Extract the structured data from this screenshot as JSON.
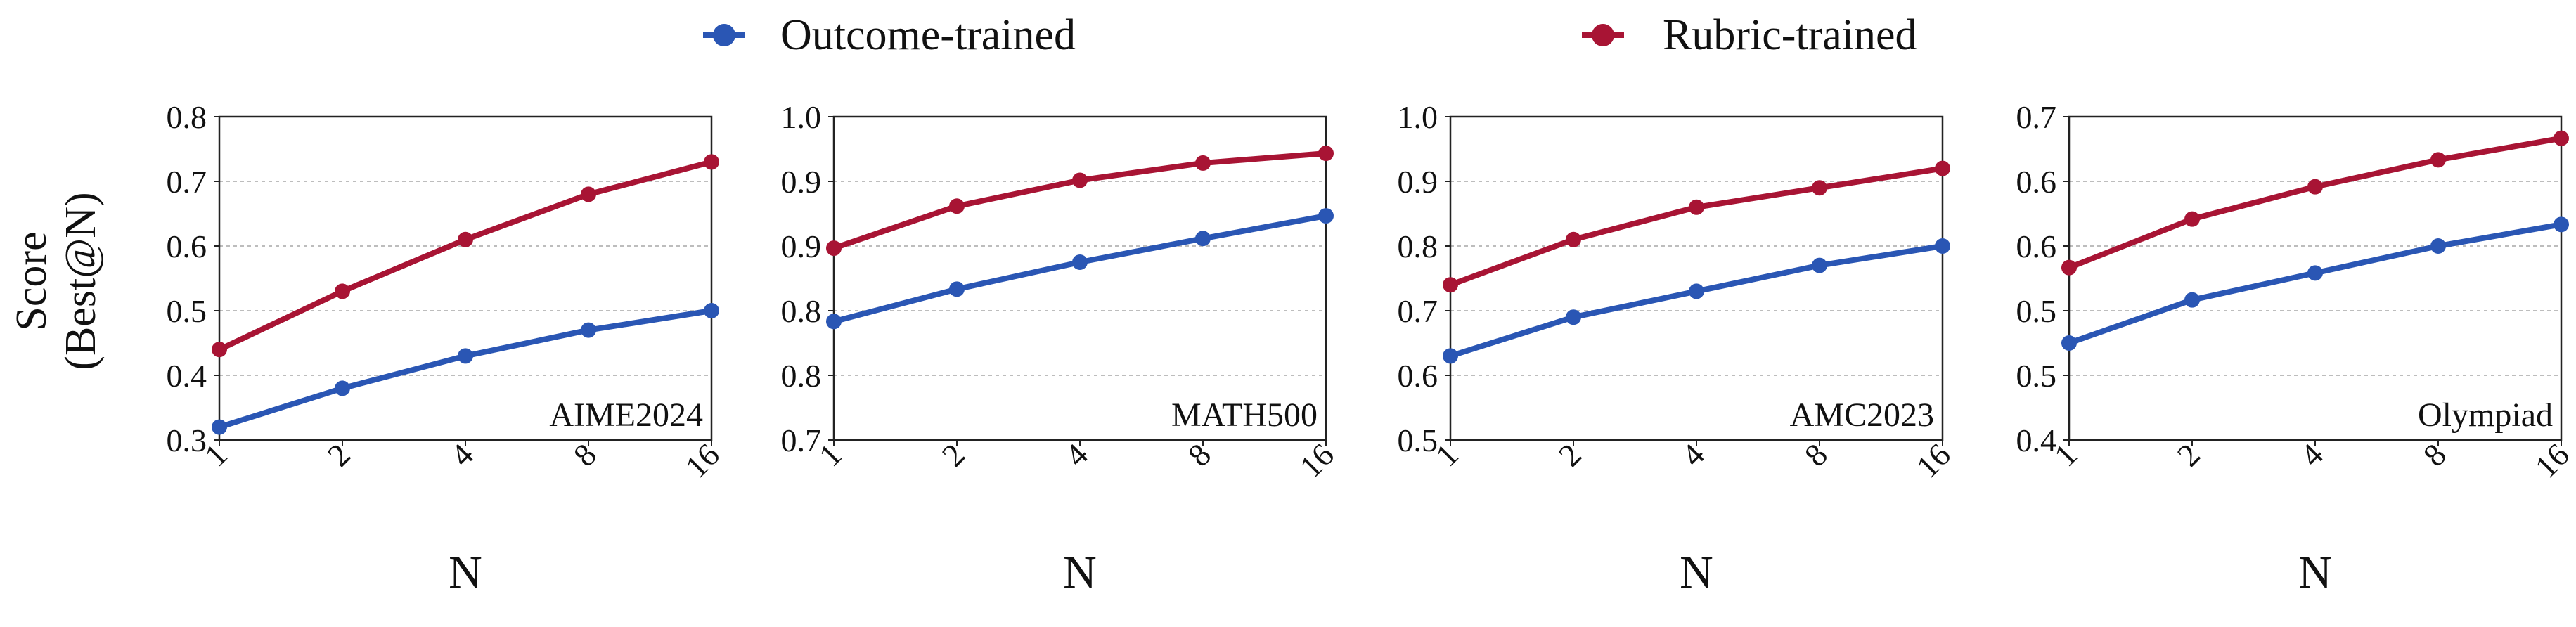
{
  "colors": {
    "outcome": "#2a56b4",
    "rubric": "#a81434",
    "grid": "#bdbdbd",
    "frame": "#222222"
  },
  "legend": {
    "outcome_label": "Outcome-trained",
    "rubric_label": "Rubric-trained"
  },
  "ylabel_line1": "Score",
  "ylabel_line2": "(Best@N)",
  "chart_data": [
    {
      "type": "line",
      "title": "AIME2024",
      "xlabel": "N",
      "ylabel": "Score (Best@N)",
      "categories": [
        "1",
        "2",
        "4",
        "8",
        "16"
      ],
      "yticks": [
        "0.3",
        "0.4",
        "0.5",
        "0.6",
        "0.7",
        "0.8"
      ],
      "ylim": [
        0.3,
        0.8
      ],
      "grid": true,
      "series": [
        {
          "name": "Outcome-trained",
          "values": [
            0.32,
            0.38,
            0.43,
            0.47,
            0.5
          ]
        },
        {
          "name": "Rubric-trained",
          "values": [
            0.44,
            0.53,
            0.61,
            0.68,
            0.73
          ]
        }
      ]
    },
    {
      "type": "line",
      "title": "MATH500",
      "xlabel": "N",
      "ylabel": "",
      "categories": [
        "1",
        "2",
        "4",
        "8",
        "16"
      ],
      "yticks": [
        "0.7",
        "0.8",
        "0.8",
        "0.9",
        "0.9",
        "1.0"
      ],
      "ylim": [
        0.7,
        1.0
      ],
      "grid": true,
      "series": [
        {
          "name": "Outcome-trained",
          "values": [
            0.81,
            0.84,
            0.865,
            0.887,
            0.908
          ]
        },
        {
          "name": "Rubric-trained",
          "values": [
            0.878,
            0.917,
            0.941,
            0.957,
            0.966
          ]
        }
      ]
    },
    {
      "type": "line",
      "title": "AMC2023",
      "xlabel": "N",
      "ylabel": "",
      "categories": [
        "1",
        "2",
        "4",
        "8",
        "16"
      ],
      "yticks": [
        "0.5",
        "0.6",
        "0.7",
        "0.8",
        "0.9",
        "1.0"
      ],
      "ylim": [
        0.5,
        1.0
      ],
      "grid": true,
      "series": [
        {
          "name": "Outcome-trained",
          "values": [
            0.63,
            0.69,
            0.73,
            0.77,
            0.8
          ]
        },
        {
          "name": "Rubric-trained",
          "values": [
            0.74,
            0.81,
            0.86,
            0.89,
            0.92
          ]
        }
      ]
    },
    {
      "type": "line",
      "title": "Olympiad",
      "xlabel": "N",
      "ylabel": "",
      "categories": [
        "1",
        "2",
        "4",
        "8",
        "16"
      ],
      "yticks": [
        "0.4",
        "0.5",
        "0.5",
        "0.6",
        "0.6",
        "0.7"
      ],
      "ylim": [
        0.4,
        0.7
      ],
      "grid": true,
      "series": [
        {
          "name": "Outcome-trained",
          "values": [
            0.49,
            0.53,
            0.555,
            0.58,
            0.6
          ]
        },
        {
          "name": "Rubric-trained",
          "values": [
            0.56,
            0.605,
            0.635,
            0.66,
            0.68
          ]
        }
      ]
    }
  ]
}
